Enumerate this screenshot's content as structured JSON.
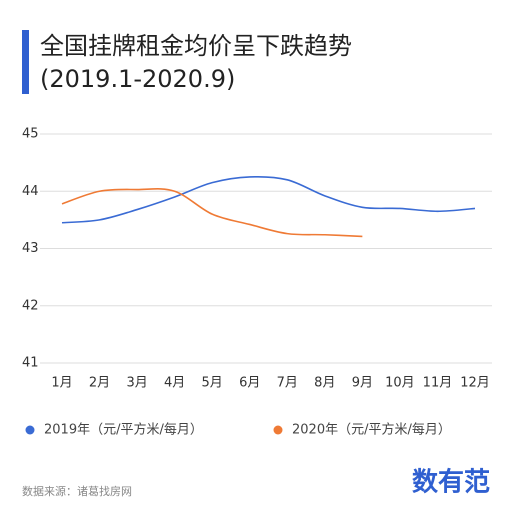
{
  "chart_data": {
    "type": "line",
    "title": "全国挂牌租金均价呈下跌趋势",
    "subtitle": "(2019.1-2020.9)",
    "categories": [
      "1月",
      "2月",
      "3月",
      "4月",
      "5月",
      "6月",
      "7月",
      "8月",
      "9月",
      "10月",
      "11月",
      "12月"
    ],
    "series": [
      {
        "name": "2019年（元/平方米/每月）",
        "color": "#3a6bd4",
        "values": [
          43.45,
          43.5,
          43.68,
          43.9,
          44.15,
          44.25,
          44.2,
          43.92,
          43.72,
          43.7,
          43.65,
          43.7
        ]
      },
      {
        "name": "2020年（元/平方米/每月）",
        "color": "#ef7a35",
        "values": [
          43.78,
          44.0,
          44.03,
          44.0,
          43.6,
          43.42,
          43.26,
          43.24,
          43.21,
          null,
          null,
          null
        ]
      }
    ],
    "ylim": [
      41,
      45
    ],
    "yticks": [
      41,
      42,
      43,
      44,
      45
    ],
    "grid": true,
    "source": "数据来源：诸葛找房网",
    "brand": "数有范"
  }
}
